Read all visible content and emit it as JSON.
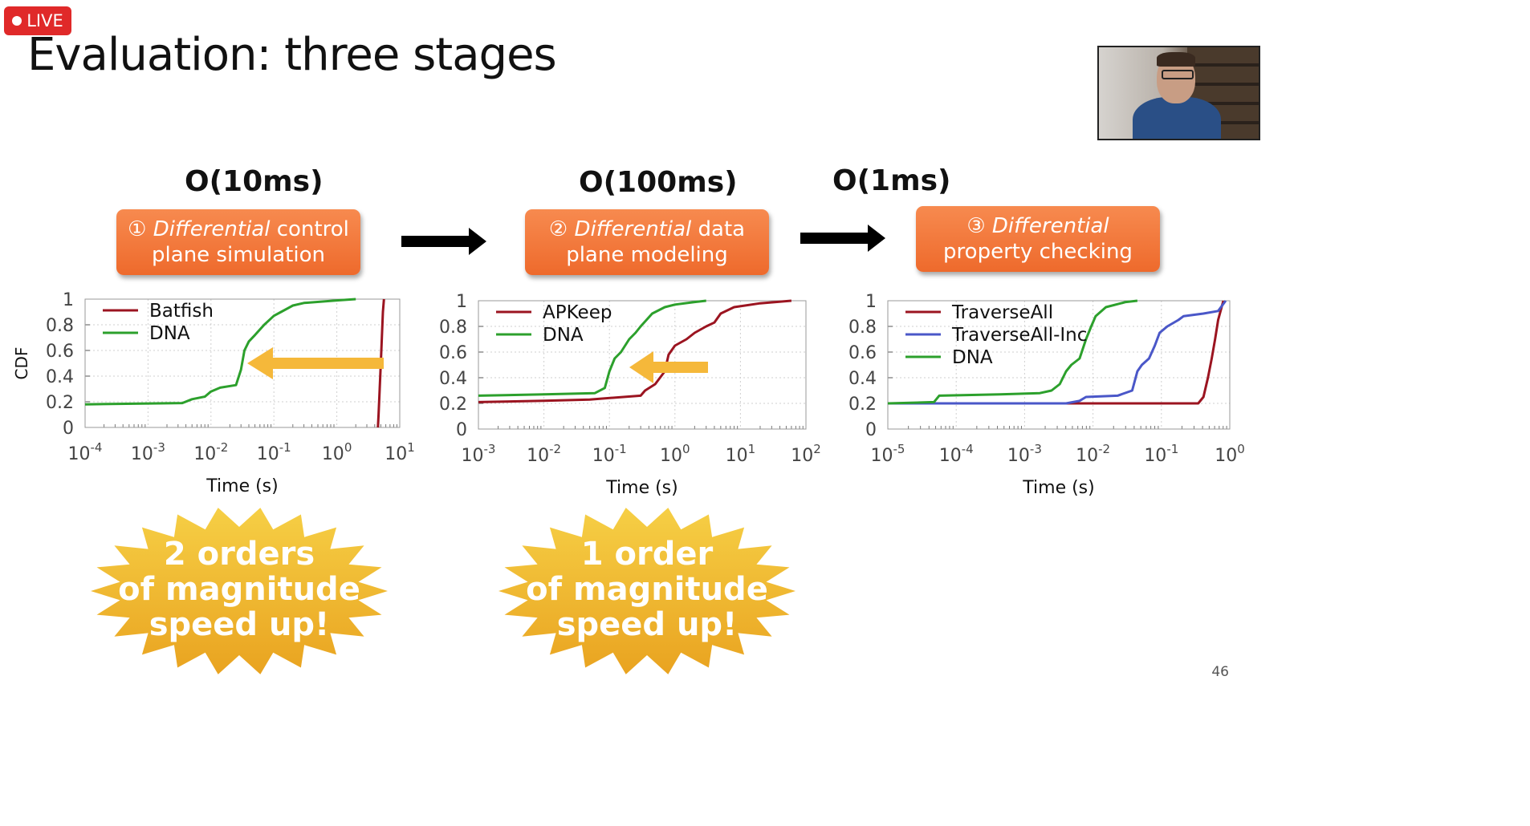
{
  "live_badge": "LIVE",
  "slide": {
    "title": "Evaluation: three stages",
    "page_number": "46"
  },
  "stages": [
    {
      "time": "O(10ms)",
      "number": "①",
      "title_italic": "Differential",
      "title_rest_line1": " control",
      "title_line2": "plane simulation"
    },
    {
      "time": "O(100ms)",
      "number": "②",
      "title_italic": "Differential",
      "title_rest_line1": " data",
      "title_line2": "plane modeling"
    },
    {
      "time": "O(1ms)",
      "number": "③",
      "title_italic": "Differential",
      "title_rest_line1": "",
      "title_line2": "property checking"
    }
  ],
  "callouts": [
    {
      "lines": [
        "2 orders",
        "of magnitude",
        "speed up!"
      ]
    },
    {
      "lines": [
        "1 order",
        "of magnitude",
        "speed up!"
      ]
    }
  ],
  "colors": {
    "orange": "#ee6a2c",
    "dark_red": "#9b1420",
    "green": "#2ca02c",
    "blue": "#4a57c8",
    "arrow_yellow": "#f5b83a"
  },
  "chart_data": [
    {
      "type": "line",
      "xscale": "log",
      "xlim": [
        0.0001,
        10
      ],
      "ylim": [
        0,
        1
      ],
      "ylabel": "CDF",
      "xlabel": "Time (s)",
      "xticks": [
        {
          "base": "10",
          "exp": "-4"
        },
        {
          "base": "10",
          "exp": "-3"
        },
        {
          "base": "10",
          "exp": "-2"
        },
        {
          "base": "10",
          "exp": "-1"
        },
        {
          "base": "10",
          "exp": "0"
        },
        {
          "base": "10",
          "exp": "1"
        }
      ],
      "yticks": [
        "0",
        "0.2",
        "0.4",
        "0.6",
        "0.8",
        "1"
      ],
      "legend_position": "top-left",
      "annotation": "arrow from Batfish toward DNA",
      "series": [
        {
          "name": "Batfish",
          "color": "#9b1420",
          "points": [
            [
              4.5,
              0
            ],
            [
              4.6,
              0.1
            ],
            [
              4.8,
              0.3
            ],
            [
              5.0,
              0.5
            ],
            [
              5.2,
              0.7
            ],
            [
              5.4,
              0.9
            ],
            [
              5.6,
              1.0
            ]
          ]
        },
        {
          "name": "DNA",
          "color": "#2ca02c",
          "points": [
            [
              0.0001,
              0.18
            ],
            [
              0.0035,
              0.19
            ],
            [
              0.005,
              0.22
            ],
            [
              0.008,
              0.24
            ],
            [
              0.01,
              0.28
            ],
            [
              0.014,
              0.31
            ],
            [
              0.025,
              0.33
            ],
            [
              0.03,
              0.45
            ],
            [
              0.034,
              0.6
            ],
            [
              0.04,
              0.67
            ],
            [
              0.05,
              0.72
            ],
            [
              0.07,
              0.8
            ],
            [
              0.1,
              0.87
            ],
            [
              0.13,
              0.9
            ],
            [
              0.2,
              0.95
            ],
            [
              0.3,
              0.97
            ],
            [
              1,
              0.99
            ],
            [
              2,
              1.0
            ]
          ]
        }
      ]
    },
    {
      "type": "line",
      "xscale": "log",
      "xlim": [
        0.001,
        100
      ],
      "ylim": [
        0,
        1
      ],
      "xlabel": "Time (s)",
      "xticks": [
        {
          "base": "10",
          "exp": "-3"
        },
        {
          "base": "10",
          "exp": "-2"
        },
        {
          "base": "10",
          "exp": "-1"
        },
        {
          "base": "10",
          "exp": "0"
        },
        {
          "base": "10",
          "exp": "1"
        },
        {
          "base": "10",
          "exp": "2"
        }
      ],
      "yticks": [
        "0",
        "0.2",
        "0.4",
        "0.6",
        "0.8",
        "1"
      ],
      "legend_position": "top-left",
      "annotation": "arrow from APKeep toward DNA",
      "series": [
        {
          "name": "APKeep",
          "color": "#9b1420",
          "points": [
            [
              0.001,
              0.21
            ],
            [
              0.01,
              0.22
            ],
            [
              0.05,
              0.23
            ],
            [
              0.3,
              0.26
            ],
            [
              0.35,
              0.3
            ],
            [
              0.5,
              0.35
            ],
            [
              0.7,
              0.45
            ],
            [
              0.8,
              0.58
            ],
            [
              1.0,
              0.65
            ],
            [
              1.5,
              0.7
            ],
            [
              2.0,
              0.75
            ],
            [
              3,
              0.8
            ],
            [
              4,
              0.83
            ],
            [
              5,
              0.9
            ],
            [
              8,
              0.95
            ],
            [
              20,
              0.98
            ],
            [
              60,
              1.0
            ]
          ]
        },
        {
          "name": "DNA",
          "color": "#2ca02c",
          "points": [
            [
              0.001,
              0.26
            ],
            [
              0.01,
              0.27
            ],
            [
              0.06,
              0.28
            ],
            [
              0.085,
              0.32
            ],
            [
              0.1,
              0.45
            ],
            [
              0.12,
              0.55
            ],
            [
              0.15,
              0.6
            ],
            [
              0.2,
              0.7
            ],
            [
              0.25,
              0.75
            ],
            [
              0.3,
              0.8
            ],
            [
              0.45,
              0.9
            ],
            [
              0.7,
              0.95
            ],
            [
              1,
              0.97
            ],
            [
              2,
              0.99
            ],
            [
              3,
              1.0
            ]
          ]
        }
      ]
    },
    {
      "type": "line",
      "xscale": "log",
      "xlim": [
        1e-05,
        1.5
      ],
      "ylim": [
        0,
        1
      ],
      "xlabel": "Time (s)",
      "xticks": [
        {
          "base": "10",
          "exp": "-5"
        },
        {
          "base": "10",
          "exp": "-4"
        },
        {
          "base": "10",
          "exp": "-3"
        },
        {
          "base": "10",
          "exp": "-2"
        },
        {
          "base": "10",
          "exp": "-1"
        },
        {
          "base": "10",
          "exp": "0"
        }
      ],
      "yticks": [
        "0",
        "0.2",
        "0.4",
        "0.6",
        "0.8",
        "1"
      ],
      "legend_position": "top-left",
      "series": [
        {
          "name": "TraverseAll",
          "color": "#9b1420",
          "points": [
            [
              1e-05,
              0.2
            ],
            [
              0.01,
              0.2
            ],
            [
              0.5,
              0.2
            ],
            [
              0.6,
              0.25
            ],
            [
              0.7,
              0.4
            ],
            [
              0.8,
              0.55
            ],
            [
              0.9,
              0.7
            ],
            [
              1.0,
              0.85
            ],
            [
              1.2,
              1.0
            ]
          ]
        },
        {
          "name": "TraverseAll-Inc",
          "color": "#4a57c8",
          "points": [
            [
              1e-05,
              0.2
            ],
            [
              0.001,
              0.2
            ],
            [
              0.005,
              0.2
            ],
            [
              0.008,
              0.22
            ],
            [
              0.01,
              0.25
            ],
            [
              0.03,
              0.26
            ],
            [
              0.05,
              0.3
            ],
            [
              0.06,
              0.45
            ],
            [
              0.07,
              0.5
            ],
            [
              0.09,
              0.55
            ],
            [
              0.11,
              0.65
            ],
            [
              0.13,
              0.75
            ],
            [
              0.17,
              0.8
            ],
            [
              0.25,
              0.85
            ],
            [
              0.3,
              0.88
            ],
            [
              0.6,
              0.9
            ],
            [
              1.0,
              0.92
            ],
            [
              1.3,
              1.0
            ]
          ]
        },
        {
          "name": "DNA",
          "color": "#2ca02c",
          "points": [
            [
              1e-05,
              0.2
            ],
            [
              5e-05,
              0.21
            ],
            [
              6e-05,
              0.26
            ],
            [
              0.0005,
              0.27
            ],
            [
              0.002,
              0.28
            ],
            [
              0.003,
              0.3
            ],
            [
              0.004,
              0.35
            ],
            [
              0.005,
              0.45
            ],
            [
              0.006,
              0.5
            ],
            [
              0.008,
              0.55
            ],
            [
              0.01,
              0.7
            ],
            [
              0.012,
              0.8
            ],
            [
              0.014,
              0.88
            ],
            [
              0.02,
              0.95
            ],
            [
              0.04,
              0.99
            ],
            [
              0.06,
              1.0
            ]
          ]
        }
      ]
    }
  ]
}
